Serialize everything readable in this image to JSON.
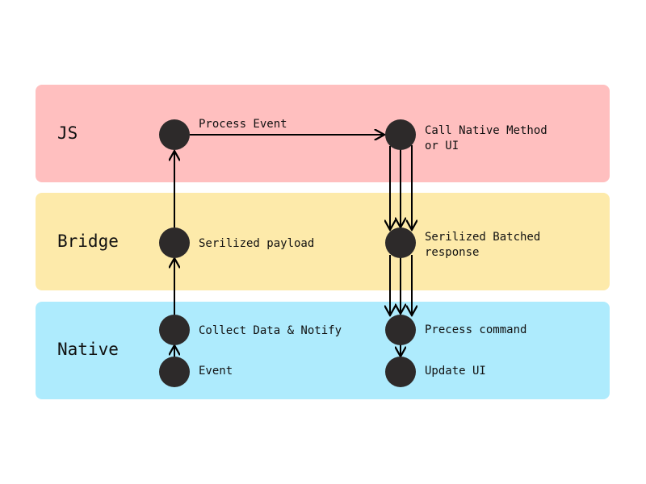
{
  "colors": {
    "js_lane": "#ffbfbf",
    "bridge_lane": "#fdeaaa",
    "native_lane": "#aeebfd",
    "node": "#2d2a2a",
    "edge": "#000000"
  },
  "lanes": {
    "js": {
      "label": "JS"
    },
    "bridge": {
      "label": "Bridge"
    },
    "native": {
      "label": "Native"
    }
  },
  "nodes": {
    "process_event": "Process Event",
    "call_native_line1": "Call Native Method",
    "call_native_line2": "or UI",
    "serialized_payload": "Serilized payload",
    "serialized_batched_line1": "Serilized Batched",
    "serialized_batched_line2": "response",
    "collect_data": "Collect Data & Notify",
    "event": "Event",
    "process_command": "Precess command",
    "update_ui": "Update UI"
  }
}
